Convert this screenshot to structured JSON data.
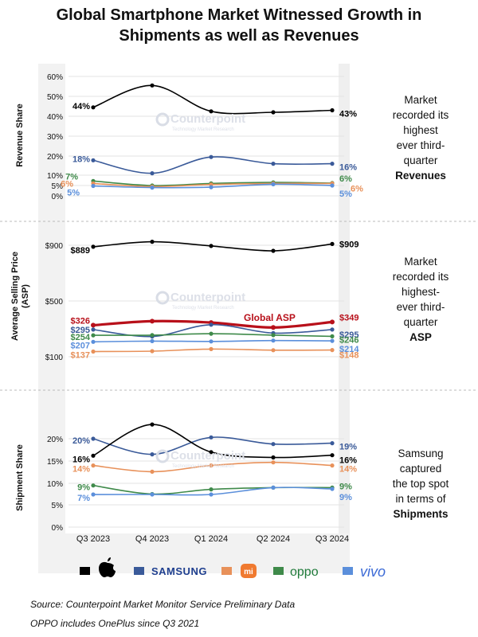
{
  "title_line1": "Global Smartphone Market Witnessed Growth in",
  "title_line2": "Shipments as well as Revenues",
  "x_categories": [
    "Q3 2023",
    "Q4 2023",
    "Q1 2024",
    "Q2 2024",
    "Q3 2024"
  ],
  "watermark": {
    "name": "Counterpoint",
    "sub": "Technology Market Research"
  },
  "legend": [
    {
      "name": "Apple",
      "color": "#000000",
      "icon": "apple-icon"
    },
    {
      "name": "SAMSUNG",
      "color": "#3a5a99",
      "icon": "samsung-wordmark"
    },
    {
      "name": "mi",
      "color": "#e8915a",
      "icon": "xiaomi-logo"
    },
    {
      "name": "oppo",
      "color": "#3f8a4a",
      "icon": "oppo-wordmark"
    },
    {
      "name": "vivo",
      "color": "#5b8fdb",
      "icon": "vivo-wordmark"
    }
  ],
  "footnotes": [
    "Source: Counterpoint Market Monitor Service Preliminary Data",
    "OPPO includes OnePlus since Q3 2021"
  ],
  "chart_data": [
    {
      "type": "line",
      "ylabel": "Revenue Share",
      "ylim": [
        0,
        60
      ],
      "yticks": [
        "0%",
        "5%",
        "10%",
        "20%",
        "30%",
        "40%",
        "50%",
        "60%"
      ],
      "series": [
        {
          "key": "apple",
          "color": "#000000",
          "values": [
            44.5,
            55.5,
            42.5,
            42,
            43
          ],
          "start_label": "44%",
          "end_label": "43%"
        },
        {
          "key": "samsung",
          "color": "#3a5a99",
          "values": [
            17.8,
            11,
            19.5,
            16,
            16
          ],
          "start_label": "18%",
          "end_label": "16%"
        },
        {
          "key": "oppo",
          "color": "#3f8a4a",
          "values": [
            7.2,
            5,
            6,
            6.5,
            6.2
          ],
          "start_label": "7%",
          "end_label": "6%"
        },
        {
          "key": "xiaomi",
          "color": "#e8915a",
          "values": [
            6,
            4.5,
            5.5,
            6,
            6
          ],
          "start_label": "6%",
          "end_label": "6%"
        },
        {
          "key": "vivo",
          "color": "#5b8fdb",
          "values": [
            4.8,
            4,
            4.2,
            5.6,
            5
          ],
          "start_label": "5%",
          "end_label": "5%"
        }
      ],
      "side_text": [
        "Market",
        "recorded its",
        "highest",
        "ever third-",
        "quarter"
      ],
      "side_bold": "Revenues"
    },
    {
      "type": "line",
      "ylabel": "Average Selling Price (ASP)",
      "yticks": [
        "$900",
        "$500",
        "$100"
      ],
      "series": [
        {
          "key": "apple",
          "color": "#000000",
          "values": [
            889,
            925,
            895,
            860,
            909
          ],
          "start_label": "$889",
          "end_label": "$909"
        },
        {
          "key": "global",
          "color": "#b8101a",
          "values": [
            326,
            355,
            345,
            310,
            349
          ],
          "start_label": "$326",
          "end_label": "$349",
          "name": "Global ASP"
        },
        {
          "key": "samsung",
          "color": "#3a5a99",
          "values": [
            295,
            245,
            330,
            270,
            295
          ],
          "start_label": "$295",
          "end_label": "$295"
        },
        {
          "key": "oppo",
          "color": "#3f8a4a",
          "values": [
            254,
            255,
            265,
            255,
            246
          ],
          "start_label": "$254",
          "end_label": "$246"
        },
        {
          "key": "vivo",
          "color": "#5b8fdb",
          "values": [
            207,
            212,
            210,
            216,
            214
          ],
          "start_label": "$207",
          "end_label": "$214"
        },
        {
          "key": "xiaomi",
          "color": "#e8915a",
          "values": [
            137,
            140,
            155,
            147,
            148
          ],
          "start_label": "$137",
          "end_label": "$148"
        }
      ],
      "side_text": [
        "Market",
        "recorded its",
        "highest-",
        "ever third-",
        "quarter"
      ],
      "side_bold": "ASP"
    },
    {
      "type": "line",
      "ylabel": "Shipment Share",
      "ylim": [
        0,
        20
      ],
      "yticks": [
        "0%",
        "5%",
        "10%",
        "15%",
        "20%"
      ],
      "series": [
        {
          "key": "samsung",
          "color": "#3a5a99",
          "values": [
            20,
            16.5,
            20.3,
            18.8,
            19
          ],
          "start_label": "20%",
          "end_label": "19%"
        },
        {
          "key": "apple",
          "color": "#000000",
          "values": [
            16.2,
            23.2,
            17,
            15.8,
            16.3
          ],
          "start_label": "16%",
          "end_label": "16%"
        },
        {
          "key": "xiaomi",
          "color": "#e8915a",
          "values": [
            14,
            12.6,
            14,
            14.7,
            14
          ],
          "start_label": "14%",
          "end_label": "14%"
        },
        {
          "key": "oppo",
          "color": "#3f8a4a",
          "values": [
            9.5,
            7.5,
            8.6,
            9,
            9
          ],
          "start_label": "9%",
          "end_label": "9%"
        },
        {
          "key": "vivo",
          "color": "#5b8fdb",
          "values": [
            7.4,
            7.4,
            7.4,
            9,
            8.7
          ],
          "start_label": "7%",
          "end_label": "9%"
        }
      ],
      "side_text": [
        "Samsung",
        "captured",
        "the top spot",
        "in terms of"
      ],
      "side_bold": "Shipments"
    }
  ]
}
